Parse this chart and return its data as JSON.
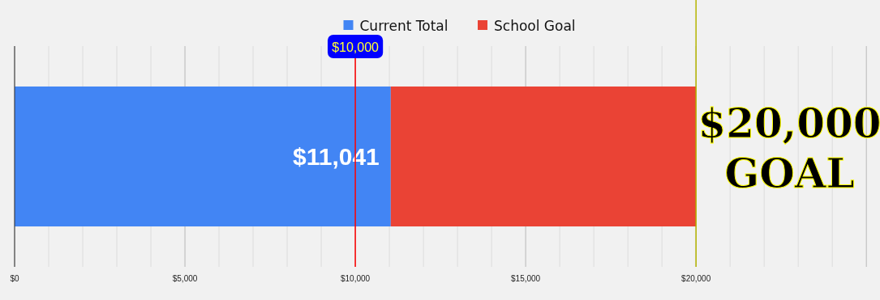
{
  "chart_data": {
    "type": "bar",
    "orientation": "horizontal",
    "stacked": true,
    "categories": [
      null
    ],
    "series": [
      {
        "name": "Current Total",
        "color": "#4285f4",
        "values": [
          11041
        ],
        "value_labels": [
          "$11,041"
        ]
      },
      {
        "name": "School Goal",
        "color": "#ea4335",
        "values": [
          8960
        ],
        "value_labels": [
          null
        ]
      }
    ],
    "xlim": [
      0,
      25400
    ],
    "xticks": [
      {
        "value": 0,
        "label": "$0"
      },
      {
        "value": 1000,
        "label": null
      },
      {
        "value": 2000,
        "label": null
      },
      {
        "value": 3000,
        "label": null
      },
      {
        "value": 4000,
        "label": null
      },
      {
        "value": 5000,
        "label": "$5,000"
      },
      {
        "value": 6000,
        "label": null
      },
      {
        "value": 7000,
        "label": null
      },
      {
        "value": 8000,
        "label": null
      },
      {
        "value": 9000,
        "label": null
      },
      {
        "value": 10000,
        "label": "$10,000"
      },
      {
        "value": 11000,
        "label": null
      },
      {
        "value": 12000,
        "label": null
      },
      {
        "value": 13000,
        "label": null
      },
      {
        "value": 14000,
        "label": null
      },
      {
        "value": 15000,
        "label": "$15,000"
      },
      {
        "value": 16000,
        "label": null
      },
      {
        "value": 17000,
        "label": null
      },
      {
        "value": 18000,
        "label": null
      },
      {
        "value": 19000,
        "label": null
      },
      {
        "value": 20000,
        "label": "$20,000"
      },
      {
        "value": 21000,
        "label": null
      },
      {
        "value": 22000,
        "label": null
      },
      {
        "value": 23000,
        "label": null
      },
      {
        "value": 24000,
        "label": null
      },
      {
        "value": 25000,
        "label": null
      }
    ],
    "grid": "x",
    "legend": "top",
    "ref_lines": [
      {
        "axis": "x",
        "value": 10000,
        "label": "$10,000",
        "color": "#ff0000"
      },
      {
        "axis": "x",
        "value": 20000,
        "label": "$20,000 GOAL",
        "color": "#b5b500"
      }
    ]
  }
}
